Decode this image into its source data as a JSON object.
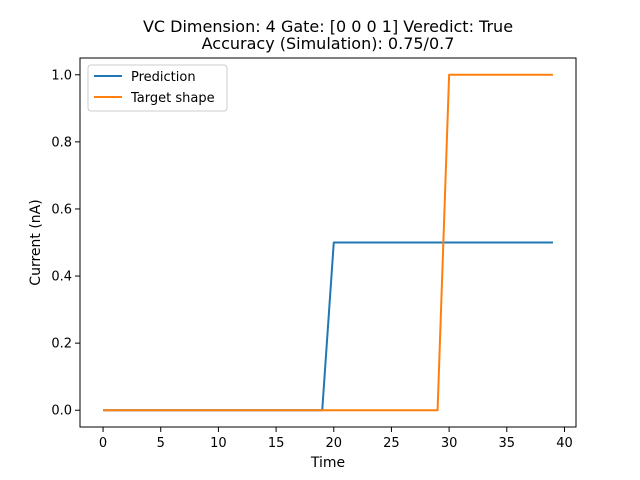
{
  "chart_data": {
    "type": "line",
    "title_line1": "VC Dimension: 4 Gate: [0 0 0 1] Veredict: True",
    "title_line2": "Accuracy (Simulation): 0.75/0.7",
    "xlabel": "Time",
    "ylabel": "Current (nA)",
    "xlim": [
      -2,
      41
    ],
    "ylim": [
      -0.05,
      1.05
    ],
    "xticks": [
      0,
      5,
      10,
      15,
      20,
      25,
      30,
      35,
      40
    ],
    "xtick_labels": [
      "0",
      "5",
      "10",
      "15",
      "20",
      "25",
      "30",
      "35",
      "40"
    ],
    "yticks": [
      0.0,
      0.2,
      0.4,
      0.6,
      0.8,
      1.0
    ],
    "ytick_labels": [
      "0.0",
      "0.2",
      "0.4",
      "0.6",
      "0.8",
      "1.0"
    ],
    "legend_position": "top-left",
    "grid": false,
    "series": [
      {
        "name": "Prediction",
        "color": "#1f77b4",
        "x": [
          0,
          19,
          20,
          39
        ],
        "y": [
          0.0,
          0.0,
          0.5,
          0.5
        ]
      },
      {
        "name": "Target shape",
        "color": "#ff7f0e",
        "x": [
          0,
          29,
          30,
          39
        ],
        "y": [
          0.0,
          0.0,
          1.0,
          1.0
        ]
      }
    ]
  }
}
